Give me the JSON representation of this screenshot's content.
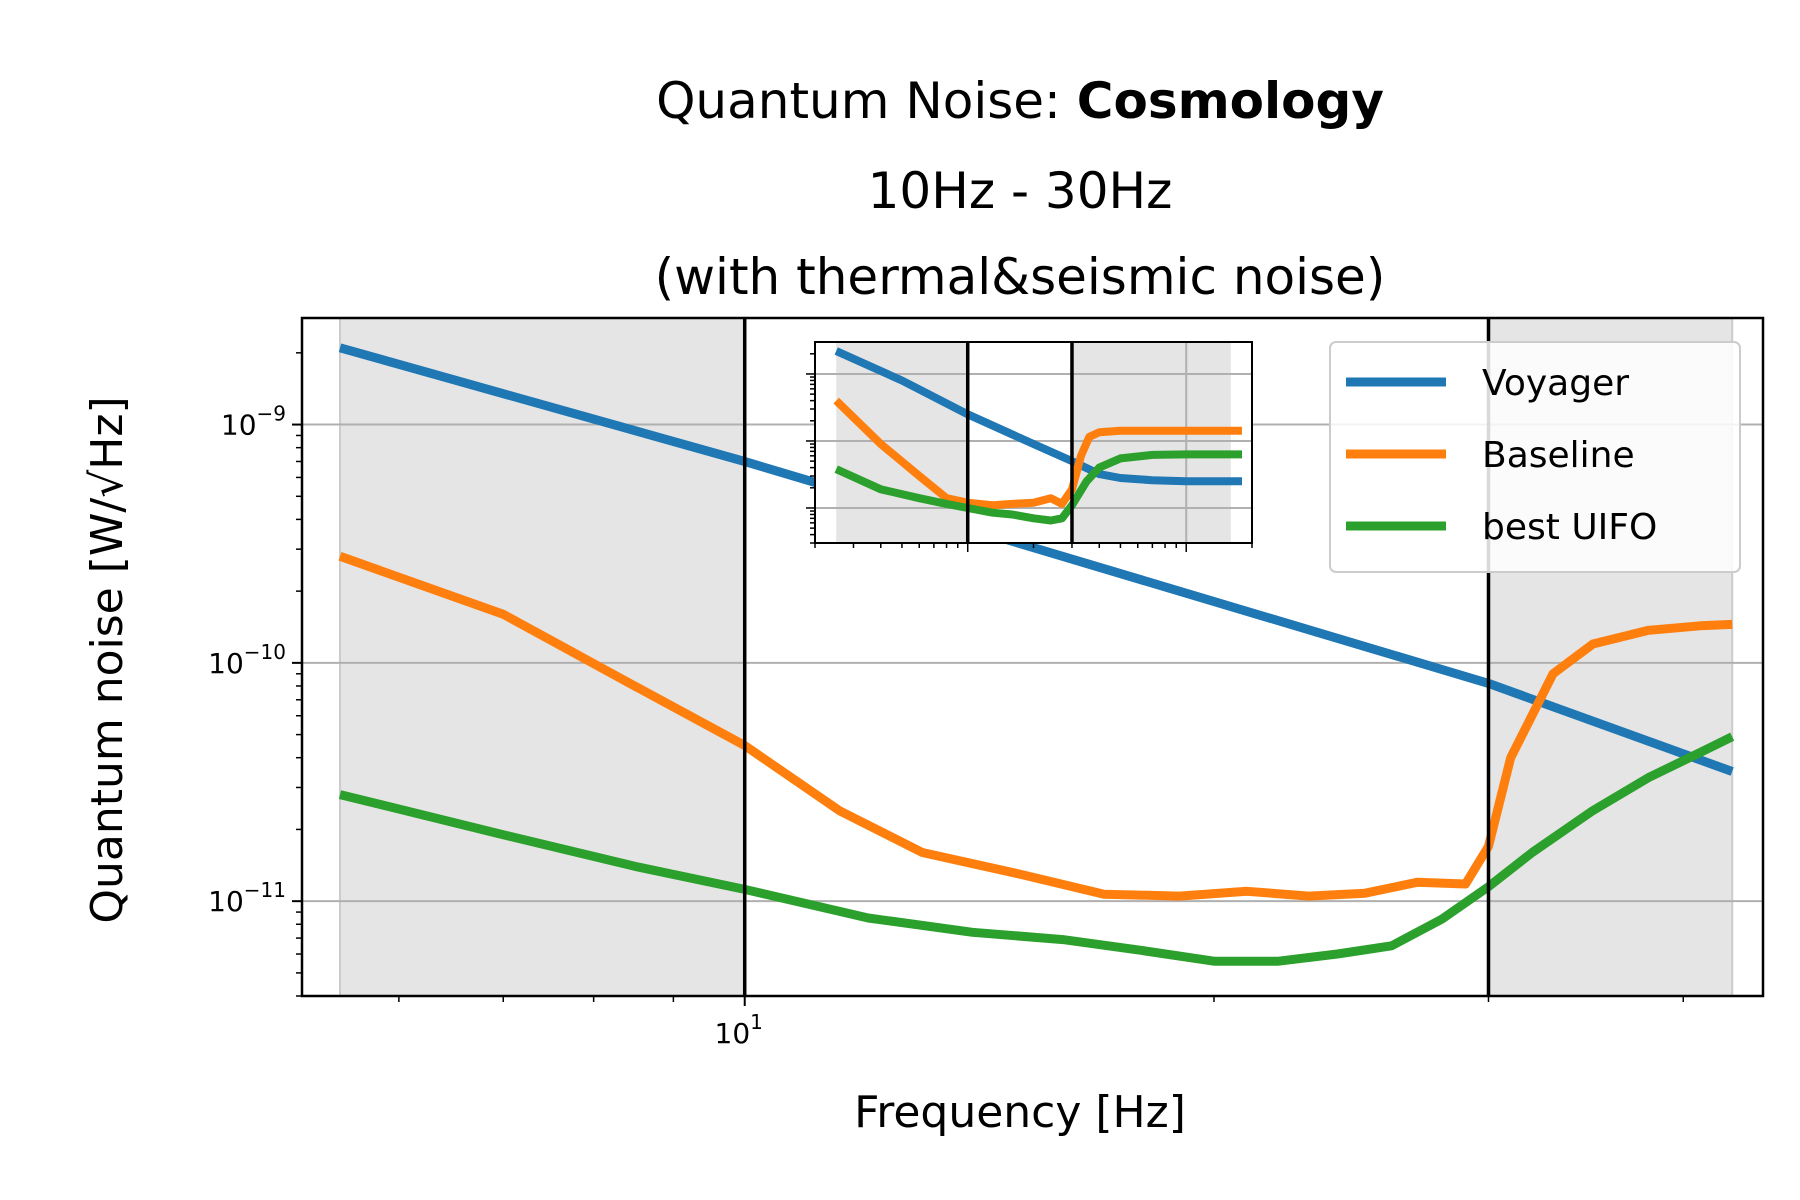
{
  "chart_data": {
    "type": "line",
    "title": {
      "prefix": "Quantum Noise: ",
      "bold": "Cosmology",
      "line2": "10Hz - 30Hz",
      "line3": "(with thermal&seismic noise)"
    },
    "xlabel": "Frequency [Hz]",
    "ylabel": "Quantum noise [W/√Hz]",
    "x_scale": "log",
    "y_scale": "log",
    "xlim": [
      5.2,
      45
    ],
    "ylim": [
      4e-12,
      2.8e-09
    ],
    "x_ticks": [
      {
        "value": 10,
        "label": "10^1"
      }
    ],
    "y_ticks": [
      {
        "value": 1e-09,
        "label": "10^-9"
      },
      {
        "value": 1e-10,
        "label": "10^-10"
      },
      {
        "value": 1e-11,
        "label": "10^-11"
      }
    ],
    "grid": true,
    "shaded_bands": [
      [
        5.5,
        10
      ],
      [
        30,
        43
      ]
    ],
    "vertical_lines": [
      10,
      30
    ],
    "legend_position": "upper-right",
    "series": [
      {
        "name": "Voyager",
        "color": "#1f77b4",
        "x": [
          5.5,
          10,
          30,
          43
        ],
        "y": [
          2.1e-09,
          7e-10,
          8.2e-11,
          3.5e-11
        ]
      },
      {
        "name": "Baseline",
        "color": "#ff7f0e",
        "x": [
          5.5,
          7,
          8.5,
          10,
          11.5,
          13,
          15,
          17,
          19,
          21,
          23,
          25,
          27,
          29,
          30,
          31,
          33,
          35,
          38,
          41,
          43
        ],
        "y": [
          2.8e-10,
          1.6e-10,
          8e-11,
          4.5e-11,
          2.4e-11,
          1.6e-11,
          1.3e-11,
          1.07e-11,
          1.05e-11,
          1.1e-11,
          1.05e-11,
          1.08e-11,
          1.2e-11,
          1.18e-11,
          1.7e-11,
          4e-11,
          9e-11,
          1.2e-10,
          1.37e-10,
          1.43e-10,
          1.45e-10
        ]
      },
      {
        "name": "best UIFO",
        "color": "#2ca02c",
        "x": [
          5.5,
          7,
          8.5,
          10,
          12,
          14,
          16,
          18,
          20,
          22,
          24,
          26,
          28,
          30,
          32,
          35,
          38,
          41,
          43
        ],
        "y": [
          2.8e-11,
          1.9e-11,
          1.4e-11,
          1.12e-11,
          8.5e-12,
          7.4e-12,
          6.9e-12,
          6.2e-12,
          5.6e-12,
          5.6e-12,
          6e-12,
          6.5e-12,
          8.4e-12,
          1.15e-11,
          1.6e-11,
          2.4e-11,
          3.3e-11,
          4.2e-11,
          4.9e-11
        ]
      }
    ],
    "inset": {
      "xlim": [
        2,
        200
      ],
      "ylim": [
        3e-12,
        3e-09
      ],
      "x_scale": "log",
      "y_scale": "log",
      "grid": true,
      "vertical_lines": [
        10,
        30
      ],
      "shaded_bands": [
        [
          2.5,
          10
        ],
        [
          30,
          160
        ]
      ],
      "series": [
        {
          "name": "Voyager",
          "color": "#1f77b4",
          "x": [
            2.5,
            5,
            10,
            20,
            30,
            40,
            50,
            70,
            100,
            150,
            180
          ],
          "y": [
            2.2e-09,
            8e-10,
            2.5e-10,
            9e-11,
            5e-11,
            3.2e-11,
            2.8e-11,
            2.6e-11,
            2.5e-11,
            2.5e-11,
            2.5e-11
          ]
        },
        {
          "name": "Baseline",
          "color": "#ff7f0e",
          "x": [
            2.5,
            4,
            6,
            8,
            10,
            13,
            16,
            20,
            24,
            27,
            30,
            33,
            36,
            40,
            50,
            70,
            100,
            150,
            180
          ],
          "y": [
            4e-10,
            9e-11,
            3e-11,
            1.4e-11,
            1.2e-11,
            1.1e-11,
            1.15e-11,
            1.2e-11,
            1.4e-11,
            1.15e-11,
            1.9e-11,
            6e-11,
            1.15e-10,
            1.35e-10,
            1.42e-10,
            1.42e-10,
            1.42e-10,
            1.42e-10,
            1.42e-10
          ]
        },
        {
          "name": "best UIFO",
          "color": "#2ca02c",
          "x": [
            2.5,
            4,
            6,
            8,
            10,
            13,
            16,
            20,
            24,
            27,
            30,
            35,
            40,
            50,
            70,
            100,
            150,
            180
          ],
          "y": [
            3.8e-11,
            1.9e-11,
            1.4e-11,
            1.15e-11,
            1e-11,
            8.5e-12,
            8e-12,
            7e-12,
            6.5e-12,
            7e-12,
            1.1e-11,
            2.5e-11,
            4e-11,
            5.5e-11,
            6.2e-11,
            6.3e-11,
            6.3e-11,
            6.3e-11
          ]
        }
      ]
    }
  }
}
